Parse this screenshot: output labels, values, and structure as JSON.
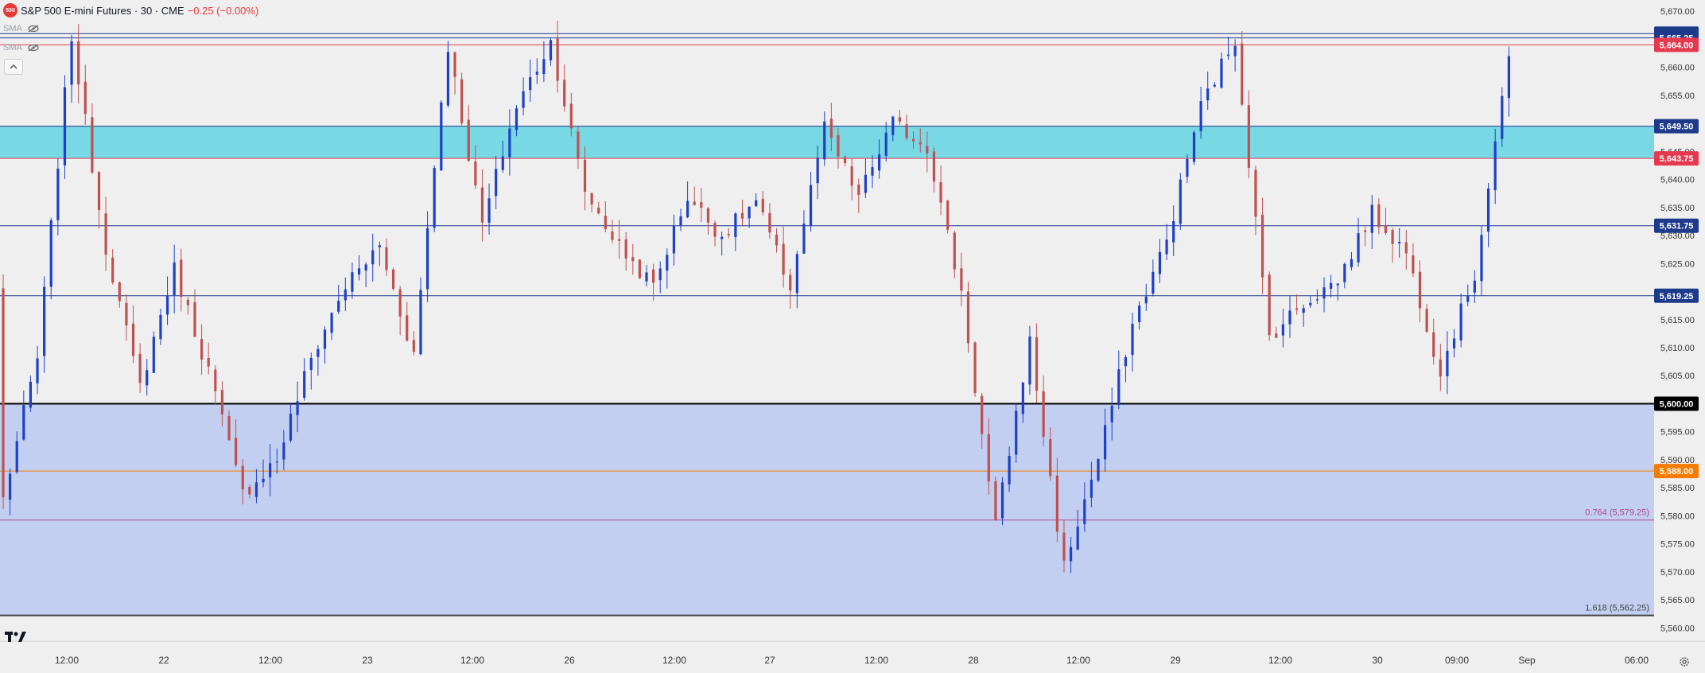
{
  "header": {
    "symbol_badge": "500",
    "title": "S&P 500 E-mini Futures · 30 · CME",
    "change": "−0.25 (−0.00%)",
    "indicators": [
      {
        "name": "SMA",
        "icon": "eye-crossed-icon"
      },
      {
        "name": "SMA",
        "icon": "eye-crossed-icon"
      }
    ],
    "collapse_icon": "chevron-up-icon"
  },
  "colors": {
    "up": "#1e40c8",
    "down": "#c05050",
    "resistance_zone": "#5ad2e0",
    "support_zone": "#bccbf0",
    "background": "#efefef"
  },
  "chart_data": {
    "type": "candlestick",
    "symbol": "S&P 500 E-mini Futures",
    "interval": "30",
    "exchange": "CME",
    "ylim": [
      5558.5,
      5672
    ],
    "price_ticks": [
      5560,
      5565,
      5570,
      5575,
      5580,
      5585,
      5590,
      5595,
      5600,
      5605,
      5610,
      5615,
      5620,
      5625,
      5630,
      5635,
      5640,
      5645,
      5650,
      5655,
      5660,
      5665,
      5670
    ],
    "time_ticks": [
      "12:00",
      "22",
      "12:00",
      "23",
      "12:00",
      "26",
      "12:00",
      "27",
      "12:00",
      "28",
      "12:00",
      "29",
      "12:00",
      "30",
      "09:00",
      "Sep",
      "06:00"
    ],
    "zones": [
      {
        "from": 5643.75,
        "to": 5649.5,
        "kind": "resistance"
      },
      {
        "from": 5562.25,
        "to": 5600.0,
        "kind": "support"
      }
    ],
    "horizontal_levels": [
      {
        "price": 5666.0,
        "label": "5,666.00",
        "color": "#1e3a8a"
      },
      {
        "price": 5665.25,
        "label": "5,665.25",
        "color": "#1e3a8a"
      },
      {
        "price": 5664.0,
        "label": "5,664.00",
        "color": "#e53950"
      },
      {
        "price": 5649.5,
        "label": "5,649.50",
        "color": "#1e3a8a"
      },
      {
        "price": 5643.75,
        "label": "5,643.75",
        "color": "#e53950"
      },
      {
        "price": 5631.75,
        "label": "5,631.75",
        "color": "#1e3a8a"
      },
      {
        "price": 5619.25,
        "label": "5,619.25",
        "color": "#1e3a8a"
      },
      {
        "price": 5600.0,
        "label": "5,600.00",
        "color": "#000000"
      },
      {
        "price": 5588.0,
        "label": "5,588.00",
        "color": "#f57c00"
      }
    ],
    "fib_levels": [
      {
        "price": 5579.25,
        "label": "0.764 (5,579.25)",
        "color": "#b04a8a"
      },
      {
        "price": 5562.25,
        "label": "1.618 (5,562.25)",
        "color": "#444444"
      }
    ],
    "anchors": [
      5583.0,
      5608.0,
      5665.5,
      5628.0,
      5603.0,
      5624.0,
      5606.0,
      5584.0,
      5590.0,
      5608.0,
      5621.0,
      5628.0,
      5609.0,
      5664.0,
      5632.0,
      5653.0,
      5664.5,
      5638.0,
      5628.0,
      5621.0,
      5637.0,
      5630.0,
      5636.0,
      5621.0,
      5649.0,
      5637.0,
      5650.0,
      5646.0,
      5620.0,
      5578.0,
      5611.0,
      5571.0,
      5590.0,
      5614.0,
      5629.0,
      5653.0,
      5665.0,
      5612.0,
      5618.0,
      5622.0,
      5634.0,
      5627.0,
      5606.0,
      5623.0,
      5662.0
    ]
  }
}
